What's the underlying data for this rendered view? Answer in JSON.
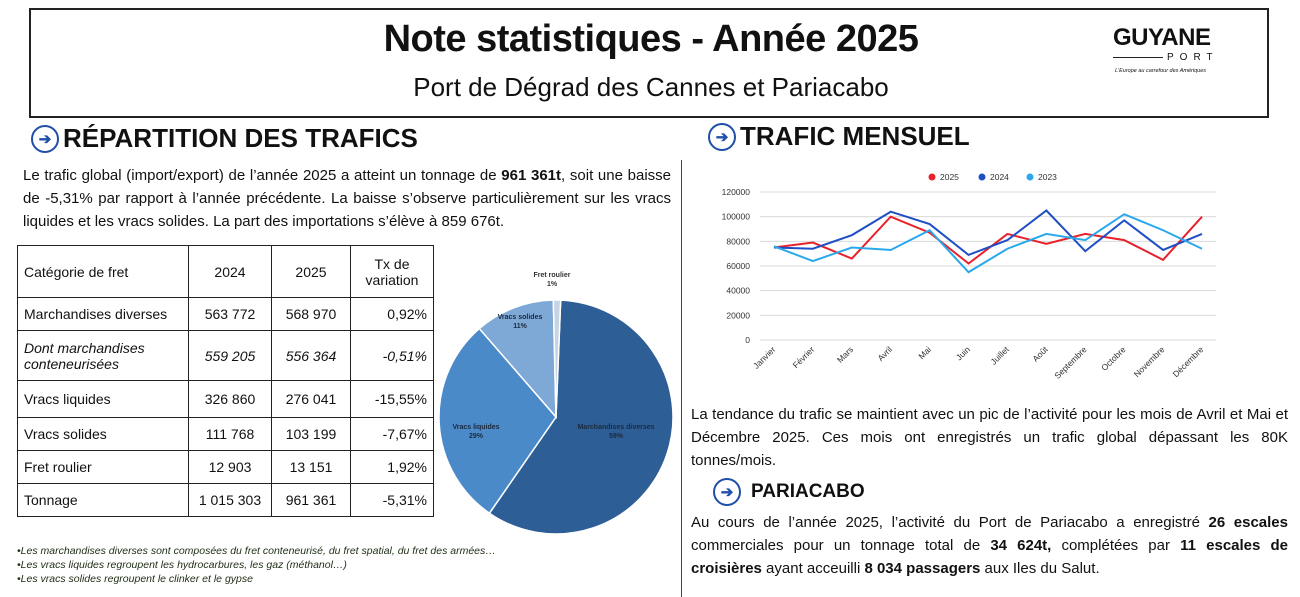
{
  "header": {
    "title": "Note statistiques - Année 2025",
    "subtitle": "Port de Dégrad des Cannes et Pariacabo",
    "logo_main": "GUYANE",
    "logo_port": "PORT",
    "logo_tagline": "L'Europe au carrefour des Amériques"
  },
  "left": {
    "heading": "RÉPARTITION DES TRAFICS",
    "intro_parts": [
      "Le trafic global (import/export) de l’année 2025 a atteint un tonnage de ",
      "961 361t",
      ", soit une baisse de -5,31% par rapport à l’année précédente. La baisse s’observe particulièrement sur les vracs liquides et les vracs solides. La part des importations s’élève à 859 676t."
    ],
    "table": {
      "headers": [
        "Catégorie de fret",
        "2024",
        "2025",
        "Tx de variation"
      ],
      "rows": [
        {
          "cat": "Marchandises diverses",
          "y2024": "563 772",
          "y2025": "568 970",
          "rate": "0,92%"
        },
        {
          "cat": "Dont marchandises conteneurisées",
          "y2024": "559 205",
          "y2025": "556 364",
          "rate": "-0,51%"
        },
        {
          "cat": "Vracs liquides",
          "y2024": "326 860",
          "y2025": "276 041",
          "rate": "-15,55%"
        },
        {
          "cat": "Vracs solides",
          "y2024": "111 768",
          "y2025": "103 199",
          "rate": "-7,67%"
        },
        {
          "cat": "Fret roulier",
          "y2024": "12 903",
          "y2025": "13 151",
          "rate": "1,92%"
        },
        {
          "cat": "Tonnage",
          "y2024": "1 015 303",
          "y2025": "961 361",
          "rate": "-5,31%"
        }
      ]
    },
    "notes": [
      "•Les marchandises diverses sont composées du fret conteneurisé, du fret spatial, du fret des armées…",
      "•Les vracs liquides regroupent les hydrocarbures, les gaz (méthanol…)",
      "•Les vracs solides regroupent le clinker et le gypse"
    ]
  },
  "right": {
    "heading": "TRAFIC MENSUEL",
    "trend_text": "La tendance du trafic se maintient avec un pic de l’activité pour les mois de Avril et Mai et Décembre 2025. Ces mois ont enregistrés un trafic global dépassant les 80K tonnes/mois.",
    "pariacabo_heading": "PARIACABO",
    "pariacabo_parts": [
      "Au cours de l’année 2025, l’activité du Port de Pariacabo a enregistré ",
      "26 escales",
      " commerciales pour un tonnage total de ",
      "34 624t,",
      " complétées par ",
      "11 escales de croisières",
      " ayant acceuilli ",
      "8 034 passagers",
      " aux Iles du Salut."
    ]
  },
  "chart_data": [
    {
      "type": "pie",
      "title": "",
      "labels": [
        "Marchandises diverses",
        "Vracs liquides",
        "Vracs solides",
        "Fret roulier"
      ],
      "values": [
        59,
        29,
        11,
        1
      ],
      "display_labels": [
        "59%",
        "29%",
        "11%",
        "1%"
      ],
      "colors": [
        "#2d5f96",
        "#4a8ac9",
        "#7ea8d6",
        "#c5d3e3"
      ]
    },
    {
      "type": "line",
      "title": "",
      "categories": [
        "Janvier",
        "Février",
        "Mars",
        "Avril",
        "Mai",
        "Juin",
        "Juillet",
        "Août",
        "Septembre",
        "Octobre",
        "Novembre",
        "Décembre"
      ],
      "series": [
        {
          "name": "2025",
          "color": "#e8212a",
          "values": [
            75000,
            79000,
            66000,
            100000,
            87000,
            62000,
            86000,
            78000,
            86000,
            81000,
            65000,
            100000
          ]
        },
        {
          "name": "2024",
          "color": "#1f4fc4",
          "values": [
            75000,
            74000,
            85000,
            104000,
            94000,
            69000,
            81000,
            105000,
            72000,
            97000,
            73000,
            86000
          ]
        },
        {
          "name": "2023",
          "color": "#2aa8ec",
          "values": [
            76000,
            64000,
            75000,
            73000,
            89000,
            55000,
            74000,
            86000,
            81000,
            102000,
            89000,
            74000
          ]
        }
      ],
      "ylim": [
        0,
        120000
      ],
      "yticks": [
        "0",
        "20000",
        "40000",
        "60000",
        "80000",
        "100000",
        "120000"
      ],
      "legend": "top"
    }
  ]
}
